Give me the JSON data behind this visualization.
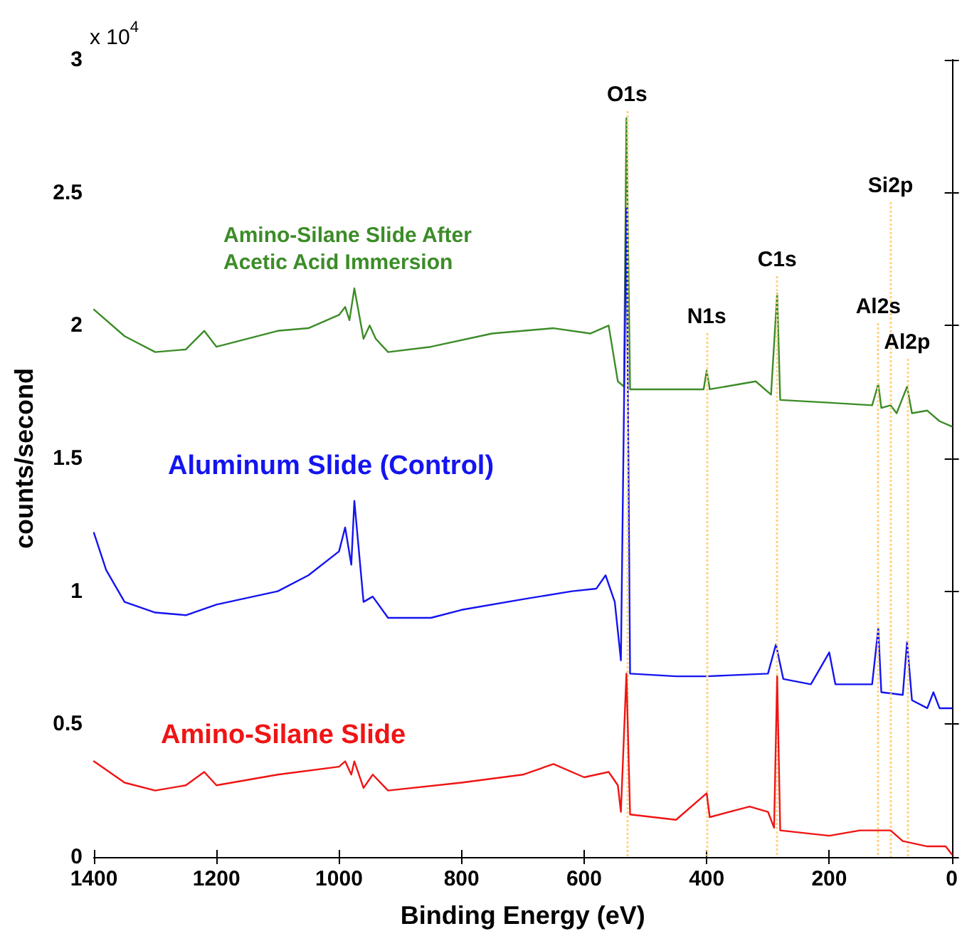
{
  "chart_data": {
    "type": "line",
    "xlabel": "Binding Energy (eV)",
    "ylabel": "counts/second",
    "annotations": [
      "x 10$^{4}$"
    ],
    "xlim": [
      1400,
      0
    ],
    "xticks": [
      1400,
      1200,
      1000,
      800,
      600,
      400,
      200,
      0
    ],
    "ylim": [
      0,
      3
    ],
    "yticks": [
      0,
      0.5,
      1,
      1.5,
      2,
      2.5,
      3
    ],
    "grid": false,
    "legend": false,
    "marker": "none",
    "line_style": "solid",
    "ref_lines": [
      {
        "axis": "x",
        "value": 530,
        "label": "O1s",
        "color": "#ffd280",
        "line_style": "dotted"
      },
      {
        "axis": "x",
        "value": 400,
        "label": "N1s",
        "color": "#ffd280",
        "line_style": "dotted"
      },
      {
        "axis": "x",
        "value": 285,
        "label": "C1s",
        "color": "#ffd280",
        "line_style": "dotted"
      },
      {
        "axis": "x",
        "value": 120,
        "label": "Al2s",
        "color": "#ffd280",
        "line_style": "dotted"
      },
      {
        "axis": "x",
        "value": 100,
        "label": "Si2p",
        "color": "#ffd280",
        "line_style": "dotted"
      },
      {
        "axis": "x",
        "value": 73,
        "label": "Al2p",
        "color": "#ffd280",
        "line_style": "dotted"
      }
    ],
    "series": [
      {
        "name": "Amino-Silane Slide After Acetic Acid Immersion",
        "color": "#3c8c28",
        "x": [
          1400,
          1350,
          1300,
          1250,
          1220,
          1200,
          1100,
          1050,
          1000,
          990,
          983,
          975,
          960,
          950,
          940,
          920,
          850,
          750,
          650,
          590,
          560,
          545,
          535,
          531,
          525,
          478,
          405,
          400,
          395,
          320,
          295,
          285,
          280,
          202,
          130,
          120,
          115,
          100,
          90,
          73,
          65,
          40,
          20,
          0
        ],
        "values": [
          2.06,
          1.96,
          1.9,
          1.91,
          1.98,
          1.92,
          1.98,
          1.99,
          2.04,
          2.07,
          2.02,
          2.14,
          1.95,
          2.0,
          1.95,
          1.9,
          1.92,
          1.97,
          1.99,
          1.97,
          2.0,
          1.79,
          1.77,
          2.78,
          1.76,
          1.76,
          1.76,
          1.83,
          1.76,
          1.79,
          1.74,
          2.12,
          1.72,
          1.71,
          1.7,
          1.78,
          1.69,
          1.7,
          1.67,
          1.77,
          1.67,
          1.68,
          1.64,
          1.62
        ]
      },
      {
        "name": "Aluminum Slide (Control)",
        "color": "#1414f0",
        "x": [
          1400,
          1380,
          1350,
          1300,
          1250,
          1200,
          1100,
          1050,
          1000,
          990,
          980,
          975,
          960,
          945,
          920,
          850,
          800,
          700,
          620,
          580,
          565,
          550,
          540,
          531,
          525,
          450,
          400,
          300,
          287,
          275,
          230,
          200,
          190,
          130,
          120,
          115,
          80,
          73,
          65,
          40,
          30,
          20,
          0
        ],
        "values": [
          1.22,
          1.08,
          0.96,
          0.92,
          0.91,
          0.95,
          1.0,
          1.06,
          1.15,
          1.24,
          1.1,
          1.34,
          0.96,
          0.98,
          0.9,
          0.9,
          0.93,
          0.97,
          1.0,
          1.01,
          1.06,
          0.96,
          0.74,
          2.44,
          0.69,
          0.68,
          0.68,
          0.69,
          0.8,
          0.67,
          0.65,
          0.77,
          0.65,
          0.65,
          0.86,
          0.62,
          0.61,
          0.81,
          0.59,
          0.56,
          0.62,
          0.56,
          0.56
        ]
      },
      {
        "name": "Amino-Silane Slide",
        "color": "#f01414",
        "x": [
          1400,
          1350,
          1300,
          1250,
          1220,
          1200,
          1100,
          1000,
          990,
          980,
          975,
          960,
          945,
          920,
          800,
          700,
          650,
          600,
          560,
          545,
          540,
          531,
          525,
          450,
          400,
          395,
          330,
          300,
          290,
          285,
          280,
          200,
          150,
          120,
          100,
          80,
          40,
          10,
          0
        ],
        "values": [
          0.36,
          0.28,
          0.25,
          0.27,
          0.32,
          0.27,
          0.31,
          0.34,
          0.36,
          0.31,
          0.36,
          0.26,
          0.31,
          0.25,
          0.28,
          0.31,
          0.35,
          0.3,
          0.32,
          0.27,
          0.17,
          0.69,
          0.16,
          0.14,
          0.24,
          0.15,
          0.19,
          0.17,
          0.11,
          0.68,
          0.1,
          0.08,
          0.1,
          0.1,
          0.1,
          0.06,
          0.04,
          0.04,
          0.01
        ]
      }
    ]
  }
}
